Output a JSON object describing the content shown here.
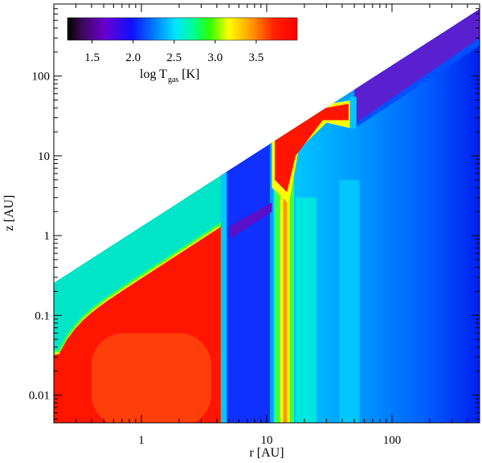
{
  "chart_data": {
    "type": "heatmap",
    "xlabel": "r [AU]",
    "ylabel": "z [AU]",
    "x_scale": "log",
    "y_scale": "log",
    "xlim": [
      0.2,
      500
    ],
    "ylim": [
      0.0045,
      800
    ],
    "x_ticks": [
      {
        "value": 1,
        "label": "1"
      },
      {
        "value": 10,
        "label": "10"
      },
      {
        "value": 100,
        "label": "100"
      }
    ],
    "y_ticks": [
      {
        "value": 0.01,
        "label": "0.01"
      },
      {
        "value": 0.1,
        "label": "0.1"
      },
      {
        "value": 1,
        "label": "1"
      },
      {
        "value": 10,
        "label": "10"
      },
      {
        "value": 100,
        "label": "100"
      }
    ],
    "colorbar": {
      "title_main": "log T",
      "title_sub": "gas",
      "title_unit": "[K]",
      "range": [
        1.2,
        4.0
      ],
      "ticks": [
        {
          "value": 1.5,
          "label": "1.5"
        },
        {
          "value": 2.0,
          "label": "2.0"
        },
        {
          "value": 2.5,
          "label": "2.5"
        },
        {
          "value": 3.0,
          "label": "3.0"
        },
        {
          "value": 3.5,
          "label": "3.5"
        }
      ],
      "position": "top-left"
    },
    "regions": [
      {
        "name": "background-envelope",
        "logT": 2.45
      },
      {
        "name": "inner-hot-disk",
        "r_range": [
          0.2,
          4.2
        ],
        "logT": 3.9
      },
      {
        "name": "inner-disk-core",
        "r_range": [
          0.35,
          3.5
        ],
        "logT": 3.75
      },
      {
        "name": "hot-layer-surface",
        "r_range": [
          0.2,
          4.2
        ],
        "logT": 2.9
      },
      {
        "name": "cold-gap",
        "r_range": [
          4.8,
          11
        ],
        "logT": 2.0
      },
      {
        "name": "cold-gap-surface",
        "r_range": [
          5.0,
          11
        ],
        "logT": 1.6
      },
      {
        "name": "hot-ring-wall",
        "r_range": [
          11.5,
          16
        ],
        "logT": 3.9
      },
      {
        "name": "hot-upper-ring",
        "r_range": [
          11,
          50
        ],
        "logT": 3.9
      },
      {
        "name": "outer-disk",
        "r_range": [
          16,
          500
        ],
        "logT": 2.3
      },
      {
        "name": "outer-disk-deep",
        "r_range": [
          60,
          500
        ],
        "logT": 2.05
      },
      {
        "name": "outer-surface-layer",
        "r_range": [
          50,
          500
        ],
        "logT": 1.55
      }
    ]
  }
}
